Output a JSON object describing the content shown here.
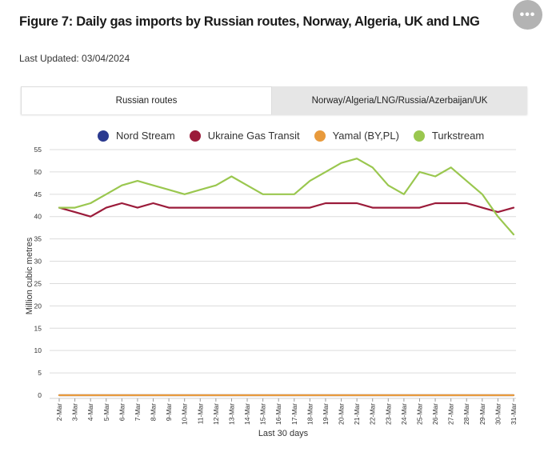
{
  "header": {
    "title": "Figure 7: Daily gas imports by Russian routes, Norway, Algeria, UK and LNG",
    "updated": "Last Updated: 03/04/2024",
    "menu_label": "•••"
  },
  "tabs": [
    {
      "label": "Russian routes",
      "active": true
    },
    {
      "label": "Norway/Algeria/LNG/Russia/Azerbaijan/UK",
      "active": false
    }
  ],
  "colors": {
    "nord_stream": "#2b3a8f",
    "ukraine": "#9b1b3a",
    "yamal": "#e89a3c",
    "turkstream": "#9ac74f"
  },
  "chart_data": {
    "type": "line",
    "title": "Figure 7: Daily gas imports by Russian routes, Norway, Algeria, UK and LNG",
    "xlabel": "Last 30 days",
    "ylabel": "Million cubic metres",
    "ylim": [
      0,
      55
    ],
    "yticks": [
      0,
      5,
      10,
      15,
      20,
      25,
      30,
      35,
      40,
      45,
      50,
      55
    ],
    "grid": true,
    "legend_position": "top",
    "categories": [
      "2-Mar",
      "3-Mar",
      "4-Mar",
      "5-Mar",
      "6-Mar",
      "7-Mar",
      "8-Mar",
      "9-Mar",
      "10-Mar",
      "11-Mar",
      "12-Mar",
      "13-Mar",
      "14-Mar",
      "15-Mar",
      "16-Mar",
      "17-Mar",
      "18-Mar",
      "19-Mar",
      "20-Mar",
      "21-Mar",
      "22-Mar",
      "23-Mar",
      "24-Mar",
      "25-Mar",
      "26-Mar",
      "27-Mar",
      "28-Mar",
      "29-Mar",
      "30-Mar",
      "31-Mar"
    ],
    "series": [
      {
        "name": "Nord Stream",
        "color_key": "nord_stream",
        "values": [
          0,
          0,
          0,
          0,
          0,
          0,
          0,
          0,
          0,
          0,
          0,
          0,
          0,
          0,
          0,
          0,
          0,
          0,
          0,
          0,
          0,
          0,
          0,
          0,
          0,
          0,
          0,
          0,
          0,
          0
        ]
      },
      {
        "name": "Ukraine Gas Transit",
        "color_key": "ukraine",
        "values": [
          42,
          41,
          40,
          42,
          43,
          42,
          43,
          42,
          42,
          42,
          42,
          42,
          42,
          42,
          42,
          42,
          42,
          43,
          43,
          43,
          42,
          42,
          42,
          42,
          43,
          43,
          43,
          42,
          41,
          42
        ]
      },
      {
        "name": "Yamal (BY,PL)",
        "color_key": "yamal",
        "values": [
          0,
          0,
          0,
          0,
          0,
          0,
          0,
          0,
          0,
          0,
          0,
          0,
          0,
          0,
          0,
          0,
          0,
          0,
          0,
          0,
          0,
          0,
          0,
          0,
          0,
          0,
          0,
          0,
          0,
          0
        ]
      },
      {
        "name": "Turkstream",
        "color_key": "turkstream",
        "values": [
          42,
          42,
          43,
          45,
          47,
          48,
          47,
          46,
          45,
          46,
          47,
          49,
          47,
          45,
          45,
          45,
          48,
          50,
          52,
          53,
          51,
          47,
          45,
          50,
          49,
          51,
          48,
          45,
          40,
          36
        ]
      }
    ]
  }
}
